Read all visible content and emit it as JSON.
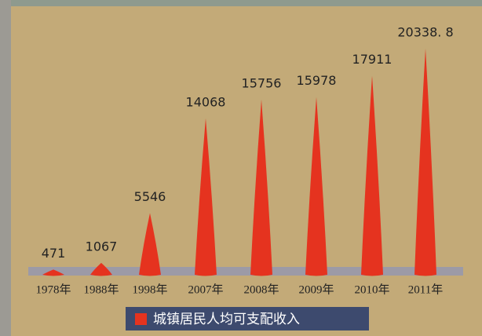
{
  "chart_data": {
    "type": "cone",
    "categories": [
      "1978年",
      "1988年",
      "1998年",
      "2007年",
      "2008年",
      "2009年",
      "2010年",
      "2011年"
    ],
    "series": [
      {
        "name": "城镇居民人均可支配收入",
        "color": "#e5331f",
        "values": [
          471,
          1067,
          5546,
          14068,
          15756,
          15978,
          17911,
          20338.8
        ],
        "value_labels": [
          "471",
          "1067",
          "5546",
          "14068",
          "15756",
          "15978",
          "17911",
          "20338. 8"
        ]
      }
    ]
  }
}
